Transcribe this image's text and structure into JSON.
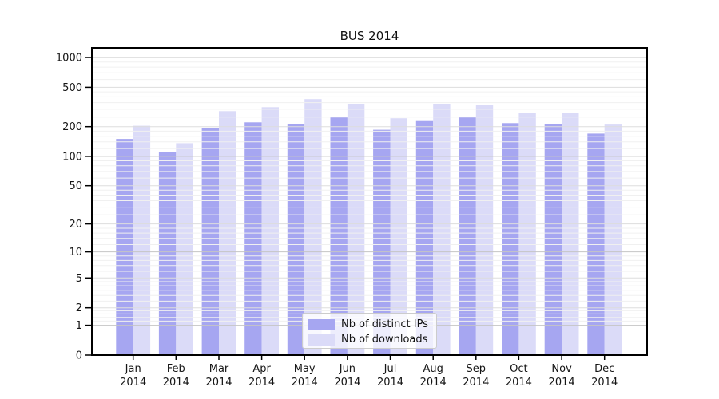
{
  "title": "BUS 2014",
  "palette": {
    "distinct_ips": "#a6a6f1",
    "downloads": "#dbdbf8",
    "grid_major": "#c5c5c5",
    "grid_mid": "#dddddd",
    "grid_minor": "#f0f0f0",
    "axis": "#000000",
    "text": "#151515",
    "legend_border": "#cccccc",
    "background": "#ffffff"
  },
  "chart_data": {
    "type": "bar",
    "title": "BUS 2014",
    "categories": [
      "Jan 2014",
      "Feb 2014",
      "Mar 2014",
      "Apr 2014",
      "May 2014",
      "Jun 2014",
      "Jul 2014",
      "Aug 2014",
      "Sep 2014",
      "Oct 2014",
      "Nov 2014",
      "Dec 2014"
    ],
    "series": [
      {
        "name": "Nb of distinct IPs",
        "color": "#a6a6f1",
        "values": [
          150,
          110,
          193,
          221,
          211,
          253,
          186,
          228,
          249,
          217,
          213,
          170
        ]
      },
      {
        "name": "Nb of downloads",
        "color": "#dbdbf8",
        "values": [
          204,
          136,
          287,
          315,
          380,
          341,
          243,
          341,
          335,
          276,
          276,
          210
        ]
      }
    ],
    "xlabel": "",
    "ylabel": "",
    "yscale": "log1p",
    "yticks": [
      0,
      1,
      2,
      5,
      10,
      20,
      50,
      100,
      200,
      500,
      1000
    ],
    "ylim": [
      0,
      1250
    ],
    "grid": true,
    "legend_position": "lower center"
  }
}
